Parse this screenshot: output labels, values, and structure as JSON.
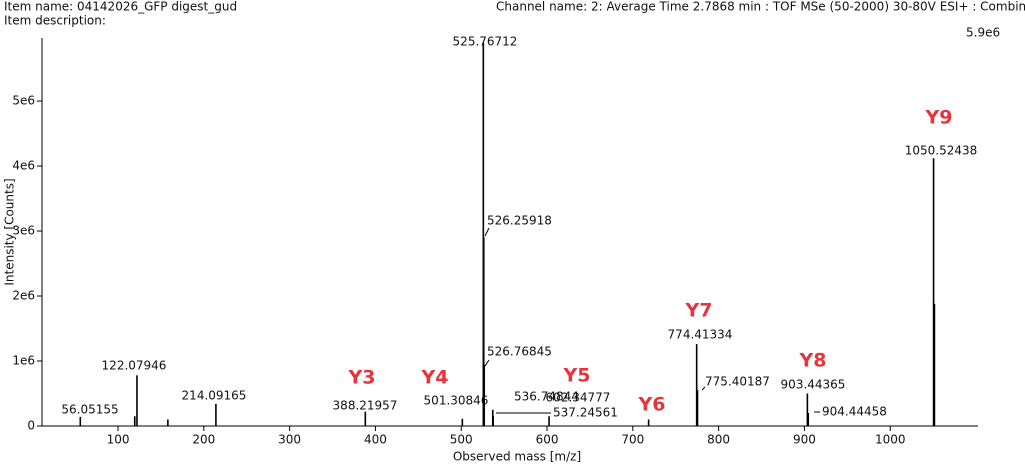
{
  "header": {
    "item_name": "Item name: 04142026_GFP digest_gud",
    "item_description": "Item description:",
    "channel_name": "Channel name: 2: Average Time 2.7868 min : TOF MSe (50-2000) 30-80V ESI+ : Combined",
    "max_intensity": "5.9e6"
  },
  "chart_data": {
    "type": "stem",
    "xlabel": "Observed mass [m/z]",
    "ylabel": "Intensity [Counts]",
    "color": "#000000",
    "x": [
      56.05155,
      119.5,
      122.07946,
      158.1,
      214.09165,
      388.21957,
      501.30846,
      525.76712,
      526.25918,
      526.76845,
      536.74844,
      537.24561,
      602.34777,
      718.4,
      774.41334,
      775.40187,
      903.44365,
      904.44458,
      1050.52438,
      1051.53
    ],
    "values": [
      140000,
      150000,
      780000,
      100000,
      340000,
      220000,
      110000,
      5900000,
      2900000,
      940000,
      250000,
      150000,
      150000,
      100000,
      1260000,
      550000,
      500000,
      200000,
      4120000,
      1880000
    ],
    "peak_labels": [
      "56.05155",
      null,
      "122.07946",
      null,
      "214.09165",
      "388.21957",
      "501.30846",
      "525.76712",
      "526.25918",
      "526.76845",
      "536.74844",
      "537.24561",
      "602.34777",
      null,
      "774.41334",
      "775.40187",
      "903.44365",
      "904.44458",
      "1050.52438",
      null
    ],
    "annotations": [
      "Y3",
      "Y4",
      "Y5",
      "Y6",
      "Y7",
      "Y8",
      "Y9"
    ],
    "xlim": [
      11.4,
      1102.3
    ],
    "xticks": [
      100,
      200,
      300,
      400,
      500,
      600,
      700,
      800,
      900,
      1000
    ],
    "ylim": [
      0,
      5970000
    ],
    "yticks": [
      0,
      {
        "value": 1000000,
        "label": "1e6"
      },
      {
        "value": 2000000,
        "label": "2e6"
      },
      {
        "value": 3000000,
        "label": "3e6"
      },
      {
        "value": 4000000,
        "label": "4e6"
      },
      {
        "value": 5000000,
        "label": "5e6"
      }
    ]
  }
}
